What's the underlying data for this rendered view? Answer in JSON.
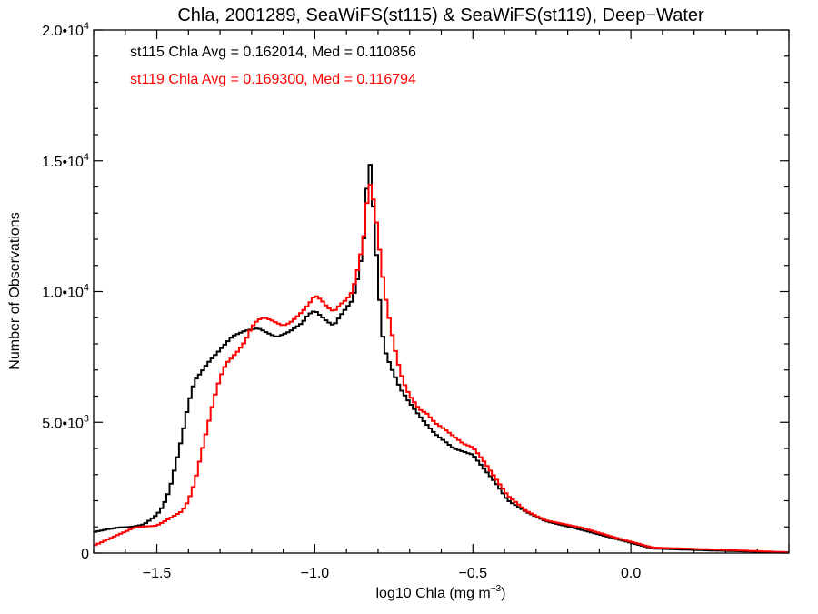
{
  "chart_data": {
    "type": "histogram",
    "title": "Chla, 2001289, SeaWiFS(st115) & SeaWiFS(st119), Deep−Water",
    "xlabel": {
      "text": "log10 Chla (mg m",
      "sup": "−3",
      "close": ")"
    },
    "ylabel": "Number of Observations",
    "xlim": [
      -1.7,
      0.5
    ],
    "ylim": [
      0,
      20000
    ],
    "bin_width": 0.01,
    "x_ticks": [
      {
        "value": -1.5,
        "label": "−1.5"
      },
      {
        "value": -1.0,
        "label": "−1.0"
      },
      {
        "value": -0.5,
        "label": "−0.5"
      },
      {
        "value": 0.0,
        "label": "0.0"
      }
    ],
    "y_ticks": [
      {
        "value": 0,
        "label": "0",
        "exp": ""
      },
      {
        "value": 5000,
        "label": "5.0•10",
        "exp": "3"
      },
      {
        "value": 10000,
        "label": "1.0•10",
        "exp": "4"
      },
      {
        "value": 15000,
        "label": "1.5•10",
        "exp": "4"
      },
      {
        "value": 20000,
        "label": "2.0•10",
        "exp": "4"
      }
    ],
    "legend": [
      {
        "text": "st115 Chla Avg = 0.162014, Med = 0.110856",
        "color": "#000000"
      },
      {
        "text": "st119 Chla Avg = 0.169300, Med = 0.116794",
        "color": "#ff0000"
      }
    ],
    "legend_placement": "top-left",
    "series": [
      {
        "name": "st115",
        "color": "#000000",
        "x": [
          -1.7,
          -1.66,
          -1.62,
          -1.58,
          -1.54,
          -1.5,
          -1.48,
          -1.46,
          -1.44,
          -1.42,
          -1.4,
          -1.38,
          -1.36,
          -1.34,
          -1.3,
          -1.26,
          -1.22,
          -1.18,
          -1.14,
          -1.12,
          -1.08,
          -1.04,
          -1.02,
          -1.0,
          -0.96,
          -0.94,
          -0.92,
          -0.88,
          -0.86,
          -0.84,
          -0.83,
          -0.82,
          -0.81,
          -0.8,
          -0.79,
          -0.78,
          -0.76,
          -0.73,
          -0.7,
          -0.67,
          -0.645,
          -0.62,
          -0.56,
          -0.5,
          -0.47,
          -0.43,
          -0.39,
          -0.33,
          -0.27,
          -0.16,
          -0.04,
          0.07,
          0.25,
          0.5
        ],
        "values": [
          800,
          900,
          980,
          1000,
          1100,
          1460,
          1800,
          2400,
          3400,
          4460,
          5700,
          6600,
          6900,
          7250,
          7770,
          8300,
          8500,
          8600,
          8360,
          8260,
          8470,
          8800,
          9130,
          9270,
          8850,
          8700,
          9060,
          9690,
          10730,
          12470,
          15400,
          14300,
          12200,
          10600,
          8750,
          7800,
          7140,
          6300,
          5750,
          5260,
          4900,
          4560,
          4000,
          3760,
          3300,
          2720,
          2020,
          1570,
          1220,
          900,
          520,
          170,
          100,
          20
        ]
      },
      {
        "name": "st119",
        "color": "#ff0000",
        "x": [
          -1.7,
          -1.57,
          -1.5,
          -1.46,
          -1.42,
          -1.4,
          -1.38,
          -1.36,
          -1.34,
          -1.32,
          -1.3,
          -1.28,
          -1.26,
          -1.24,
          -1.22,
          -1.2,
          -1.18,
          -1.16,
          -1.14,
          -1.12,
          -1.1,
          -1.08,
          -1.06,
          -1.04,
          -1.02,
          -1.0,
          -0.98,
          -0.96,
          -0.94,
          -0.92,
          -0.9,
          -0.88,
          -0.86,
          -0.84,
          -0.83,
          -0.82,
          -0.81,
          -0.8,
          -0.79,
          -0.78,
          -0.76,
          -0.74,
          -0.72,
          -0.7,
          -0.67,
          -0.645,
          -0.62,
          -0.59,
          -0.56,
          -0.53,
          -0.5,
          -0.47,
          -0.43,
          -0.39,
          -0.33,
          -0.27,
          -0.16,
          -0.04,
          0.07,
          0.25,
          0.5
        ],
        "values": [
          280,
          980,
          1050,
          1320,
          1600,
          2000,
          2700,
          3760,
          4800,
          5850,
          6700,
          7250,
          7500,
          7770,
          8100,
          8640,
          8920,
          9000,
          8920,
          8800,
          8700,
          8800,
          9000,
          9230,
          9500,
          9860,
          9690,
          9400,
          9230,
          9500,
          9690,
          10030,
          11080,
          12470,
          14300,
          13870,
          13170,
          12120,
          11080,
          10030,
          8640,
          7420,
          6550,
          6030,
          5500,
          5330,
          4980,
          4740,
          4460,
          4180,
          4040,
          3590,
          2890,
          2200,
          1600,
          1250,
          980,
          560,
          210,
          140,
          30
        ]
      }
    ]
  }
}
